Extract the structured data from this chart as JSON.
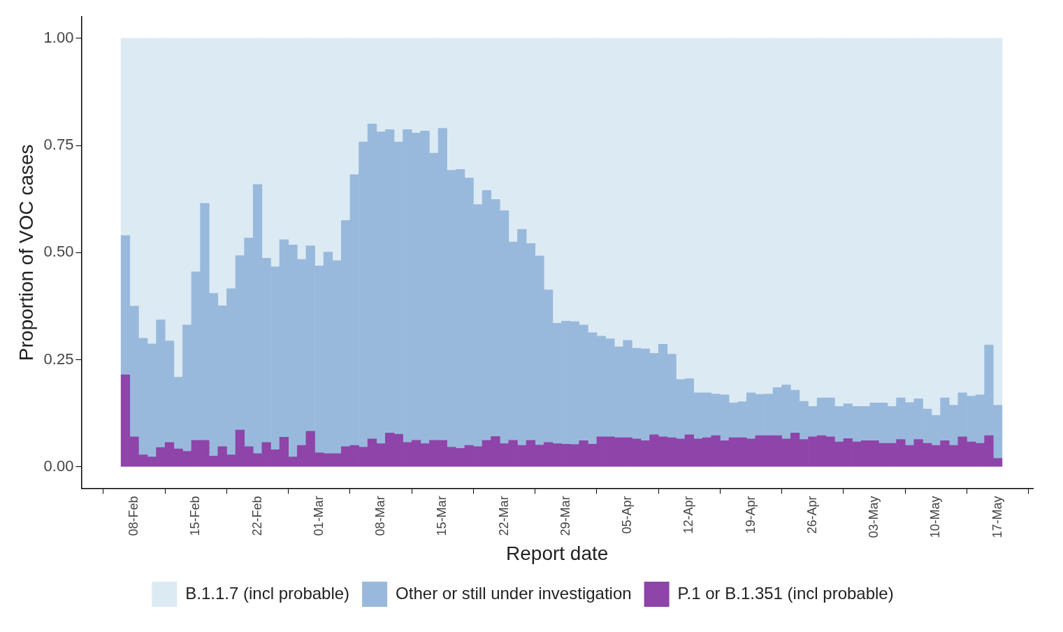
{
  "chart_data": {
    "type": "bar",
    "stacked": true,
    "xlabel": "Report date",
    "ylabel": "Proportion of VOC cases",
    "x": [
      "--02-07",
      "--02-08",
      "--02-09",
      "--02-10",
      "--02-11",
      "--02-12",
      "--02-13",
      "--02-14",
      "--02-15",
      "--02-16",
      "--02-17",
      "--02-18",
      "--02-19",
      "--02-20",
      "--02-21",
      "--02-22",
      "--02-23",
      "--02-24",
      "--02-25",
      "--02-26",
      "--02-27",
      "--02-28",
      "--03-01",
      "--03-02",
      "--03-03",
      "--03-04",
      "--03-05",
      "--03-06",
      "--03-07",
      "--03-08",
      "--03-09",
      "--03-10",
      "--03-11",
      "--03-12",
      "--03-13",
      "--03-14",
      "--03-15",
      "--03-16",
      "--03-17",
      "--03-18",
      "--03-19",
      "--03-20",
      "--03-21",
      "--03-22",
      "--03-23",
      "--03-24",
      "--03-25",
      "--03-26",
      "--03-27",
      "--03-28",
      "--03-29",
      "--03-30",
      "--03-31",
      "--04-01",
      "--04-02",
      "--04-03",
      "--04-04",
      "--04-05",
      "--04-06",
      "--04-07",
      "--04-08",
      "--04-09",
      "--04-10",
      "--04-11",
      "--04-12",
      "--04-13",
      "--04-14",
      "--04-15",
      "--04-16",
      "--04-17",
      "--04-18",
      "--04-19",
      "--04-20",
      "--04-21",
      "--04-22",
      "--04-23",
      "--04-24",
      "--04-25",
      "--04-26",
      "--04-27",
      "--04-28",
      "--04-29",
      "--04-30",
      "--05-01",
      "--05-02",
      "--05-03",
      "--05-04",
      "--05-05",
      "--05-06",
      "--05-07",
      "--05-08",
      "--05-09",
      "--05-10",
      "--05-11",
      "--05-12",
      "--05-13",
      "--05-14",
      "--05-15",
      "--05-16",
      "--05-17"
    ],
    "series": [
      {
        "name": "P.1 or B.1.351 (incl probable)",
        "color": "#8e44a8",
        "values": [
          0.215,
          0.07,
          0.028,
          0.023,
          0.045,
          0.057,
          0.042,
          0.036,
          0.062,
          0.062,
          0.025,
          0.047,
          0.028,
          0.086,
          0.047,
          0.031,
          0.057,
          0.04,
          0.069,
          0.023,
          0.05,
          0.083,
          0.033,
          0.031,
          0.031,
          0.047,
          0.05,
          0.046,
          0.065,
          0.054,
          0.079,
          0.076,
          0.057,
          0.062,
          0.054,
          0.062,
          0.062,
          0.046,
          0.043,
          0.05,
          0.047,
          0.062,
          0.071,
          0.054,
          0.062,
          0.05,
          0.062,
          0.051,
          0.057,
          0.054,
          0.053,
          0.052,
          0.061,
          0.053,
          0.07,
          0.07,
          0.068,
          0.068,
          0.065,
          0.061,
          0.075,
          0.07,
          0.068,
          0.065,
          0.075,
          0.065,
          0.068,
          0.073,
          0.061,
          0.068,
          0.068,
          0.065,
          0.073,
          0.073,
          0.073,
          0.065,
          0.079,
          0.064,
          0.07,
          0.073,
          0.07,
          0.058,
          0.066,
          0.058,
          0.061,
          0.061,
          0.055,
          0.055,
          0.064,
          0.05,
          0.064,
          0.055,
          0.05,
          0.061,
          0.05,
          0.07,
          0.058,
          0.055,
          0.073,
          0.02
        ]
      },
      {
        "name": "Other or still under investigation",
        "color": "#99b9dc",
        "values": [
          0.325,
          0.305,
          0.272,
          0.264,
          0.298,
          0.237,
          0.167,
          0.295,
          0.393,
          0.553,
          0.38,
          0.329,
          0.388,
          0.407,
          0.487,
          0.628,
          0.43,
          0.427,
          0.461,
          0.495,
          0.434,
          0.433,
          0.436,
          0.47,
          0.45,
          0.528,
          0.632,
          0.712,
          0.735,
          0.728,
          0.708,
          0.682,
          0.73,
          0.717,
          0.73,
          0.67,
          0.728,
          0.646,
          0.651,
          0.624,
          0.565,
          0.583,
          0.553,
          0.544,
          0.463,
          0.504,
          0.459,
          0.441,
          0.356,
          0.281,
          0.287,
          0.287,
          0.27,
          0.26,
          0.235,
          0.229,
          0.212,
          0.227,
          0.212,
          0.214,
          0.19,
          0.216,
          0.195,
          0.139,
          0.131,
          0.108,
          0.105,
          0.097,
          0.107,
          0.081,
          0.084,
          0.108,
          0.096,
          0.097,
          0.112,
          0.126,
          0.1,
          0.089,
          0.071,
          0.088,
          0.091,
          0.083,
          0.081,
          0.083,
          0.08,
          0.088,
          0.094,
          0.086,
          0.097,
          0.1,
          0.095,
          0.08,
          0.07,
          0.1,
          0.094,
          0.103,
          0.107,
          0.113,
          0.211,
          0.124
        ]
      },
      {
        "name": "B.1.1.7 (incl probable)",
        "color": "#dceaf4",
        "values": [
          0.46,
          0.625,
          0.7,
          0.713,
          0.657,
          0.706,
          0.791,
          0.669,
          0.545,
          0.385,
          0.595,
          0.624,
          0.584,
          0.507,
          0.466,
          0.341,
          0.513,
          0.533,
          0.47,
          0.482,
          0.516,
          0.484,
          0.531,
          0.499,
          0.519,
          0.425,
          0.318,
          0.242,
          0.2,
          0.218,
          0.213,
          0.242,
          0.213,
          0.221,
          0.216,
          0.268,
          0.21,
          0.308,
          0.306,
          0.326,
          0.388,
          0.355,
          0.376,
          0.402,
          0.475,
          0.446,
          0.479,
          0.508,
          0.587,
          0.665,
          0.66,
          0.661,
          0.669,
          0.687,
          0.695,
          0.701,
          0.72,
          0.705,
          0.723,
          0.725,
          0.735,
          0.714,
          0.737,
          0.796,
          0.794,
          0.827,
          0.827,
          0.83,
          0.832,
          0.851,
          0.848,
          0.827,
          0.831,
          0.83,
          0.815,
          0.809,
          0.821,
          0.847,
          0.859,
          0.839,
          0.839,
          0.859,
          0.853,
          0.859,
          0.859,
          0.851,
          0.851,
          0.859,
          0.839,
          0.85,
          0.841,
          0.865,
          0.88,
          0.839,
          0.856,
          0.827,
          0.835,
          0.832,
          0.716,
          0.856
        ]
      }
    ],
    "xlim": [
      "--02-02",
      "--05-21"
    ],
    "xticks": [
      {
        "value": "--02-08",
        "label": "08-Feb"
      },
      {
        "value": "--02-15",
        "label": "15-Feb"
      },
      {
        "value": "--02-22",
        "label": "22-Feb"
      },
      {
        "value": "--03-01",
        "label": "01-Mar"
      },
      {
        "value": "--03-08",
        "label": "08-Mar"
      },
      {
        "value": "--03-15",
        "label": "15-Mar"
      },
      {
        "value": "--03-22",
        "label": "22-Mar"
      },
      {
        "value": "--03-29",
        "label": "29-Mar"
      },
      {
        "value": "--04-05",
        "label": "05-Apr"
      },
      {
        "value": "--04-12",
        "label": "12-Apr"
      },
      {
        "value": "--04-19",
        "label": "19-Apr"
      },
      {
        "value": "--04-26",
        "label": "26-Apr"
      },
      {
        "value": "--05-03",
        "label": "03-May"
      },
      {
        "value": "--05-10",
        "label": "10-May"
      },
      {
        "value": "--05-17",
        "label": "17-May"
      }
    ],
    "ylim": [
      -0.05,
      1.05
    ],
    "yticks": [
      {
        "value": 0,
        "label": "0.00"
      },
      {
        "value": 0.25,
        "label": "0.25"
      },
      {
        "value": 0.5,
        "label": "0.50"
      },
      {
        "value": 0.75,
        "label": "0.75"
      },
      {
        "value": 1,
        "label": "1.00"
      }
    ],
    "grid": false,
    "legend": "bottom"
  }
}
